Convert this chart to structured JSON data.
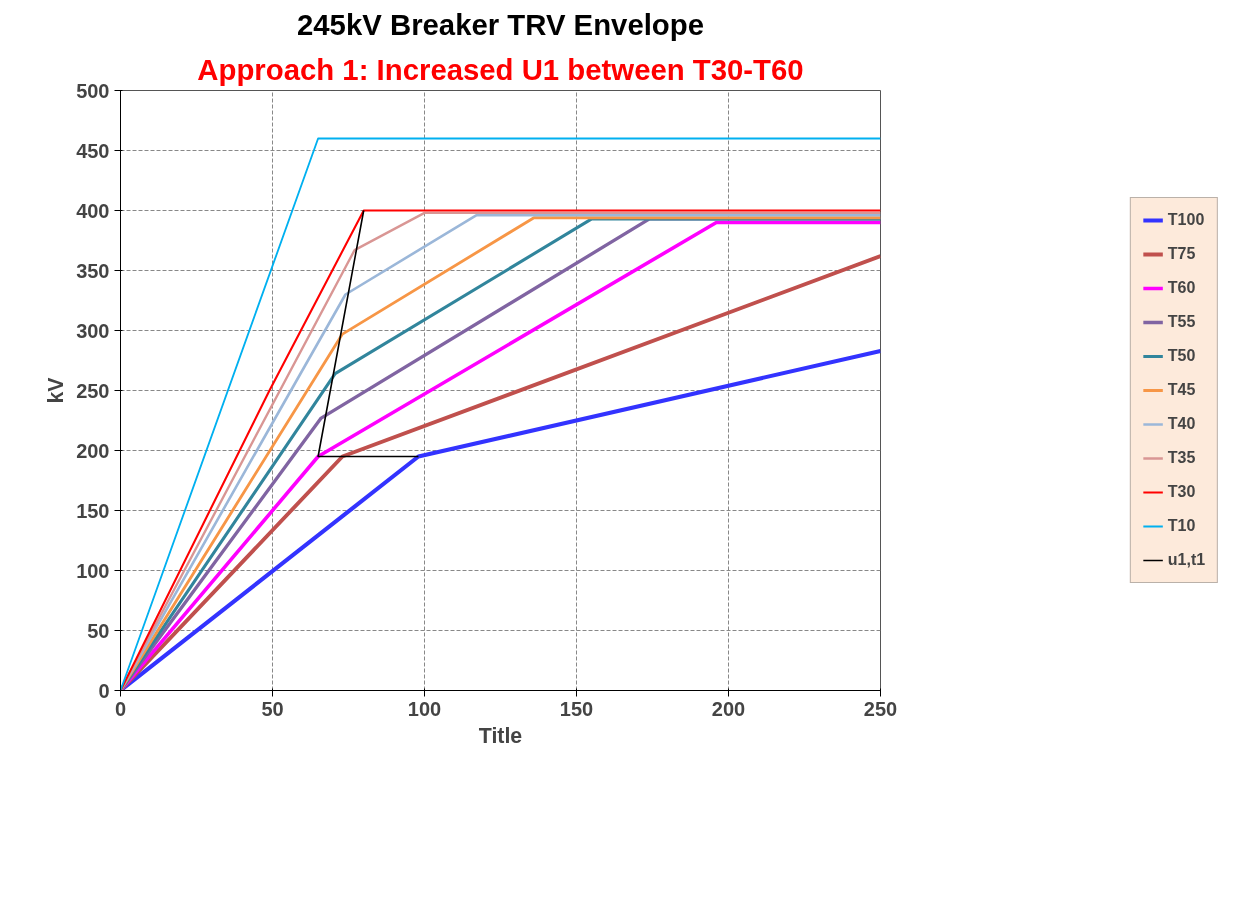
{
  "chart_data": {
    "type": "line",
    "title": "245kV Breaker TRV Envelope",
    "subtitle": "Approach 1: Increased U1 between T30-T60",
    "xlabel": "Title",
    "ylabel": "kV",
    "xlim": [
      0,
      250
    ],
    "ylim": [
      0,
      500
    ],
    "xticks": [
      0,
      50,
      100,
      150,
      200,
      250
    ],
    "yticks": [
      0,
      50,
      100,
      150,
      200,
      250,
      300,
      350,
      400,
      450,
      500
    ],
    "grid": true,
    "legend": "right",
    "marker": "none",
    "line_style": "solid",
    "series": [
      {
        "name": "T100",
        "color": "#3333ff",
        "x": [
          0,
          98,
          250
        ],
        "values": [
          0,
          195,
          283
        ]
      },
      {
        "name": "T75",
        "color": "#c0504d",
        "x": [
          0,
          73,
          250
        ],
        "values": [
          0,
          195,
          362
        ]
      },
      {
        "name": "T60",
        "color": "#ff00ff",
        "x": [
          0,
          65,
          196,
          250
        ],
        "values": [
          0,
          195,
          390,
          390
        ]
      },
      {
        "name": "T55",
        "color": "#8064a2",
        "x": [
          0,
          66,
          174,
          250
        ],
        "values": [
          0,
          227,
          393,
          393
        ]
      },
      {
        "name": "T50",
        "color": "#31859c",
        "x": [
          0,
          70.6,
          155,
          250
        ],
        "values": [
          0,
          264,
          393,
          393
        ]
      },
      {
        "name": "T45",
        "color": "#f79646",
        "x": [
          0,
          73,
          136,
          250
        ],
        "values": [
          0,
          297,
          394,
          394
        ]
      },
      {
        "name": "T40",
        "color": "#9bb7d9",
        "x": [
          0,
          74,
          117,
          250
        ],
        "values": [
          0,
          330,
          396,
          396
        ]
      },
      {
        "name": "T35",
        "color": "#d99694",
        "x": [
          0,
          77,
          100,
          250
        ],
        "values": [
          0,
          367,
          398,
          398
        ]
      },
      {
        "name": "T30",
        "color": "#ff0000",
        "x": [
          0,
          49,
          80,
          250
        ],
        "values": [
          0,
          250,
          400,
          400
        ]
      },
      {
        "name": "T10",
        "color": "#00b0f0",
        "x": [
          0,
          65,
          250
        ],
        "values": [
          0,
          460,
          460
        ]
      },
      {
        "name": "u1,t1",
        "color": "#000000",
        "x": [
          98,
          65,
          80
        ],
        "values": [
          195,
          195,
          400
        ]
      }
    ]
  }
}
